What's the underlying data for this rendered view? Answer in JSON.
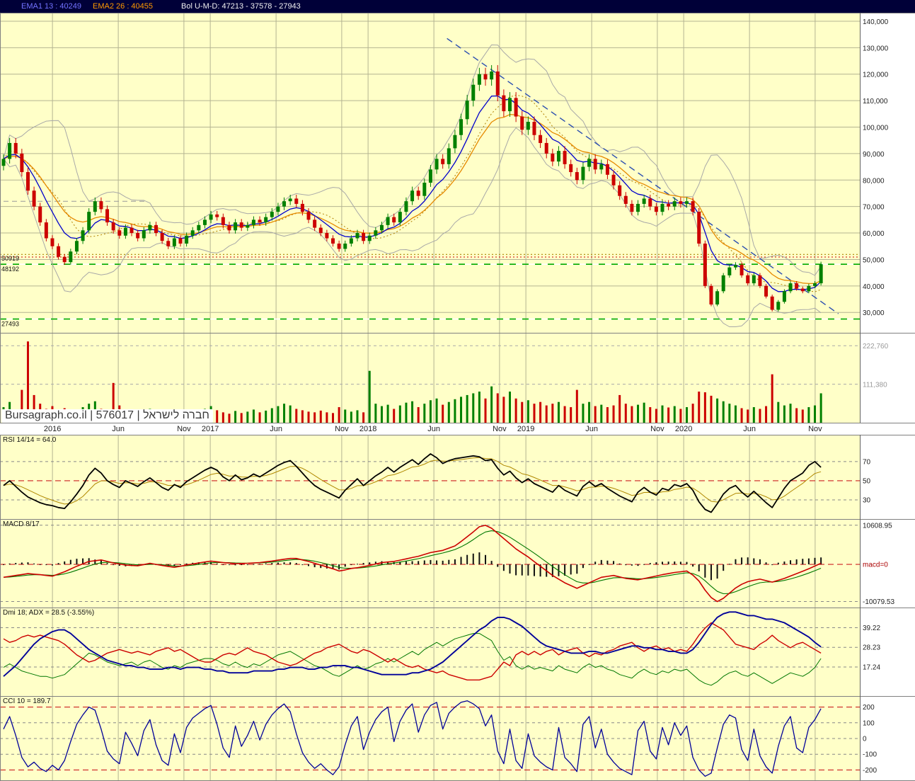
{
  "header": {
    "ema1": "EMA1 13 : 40249",
    "ema2": "EMA2 26 : 40455",
    "bol": "Bol U-M-D: 47213 - 37578 - 27943"
  },
  "watermark": "Bursagraph.co.il | 576017 | חברה לישראל",
  "colors": {
    "panel_background": "#ffffc8",
    "grid": "#b4b492",
    "up": "#008000",
    "down": "#cc0000",
    "ema_fast": "#0000cc",
    "ema_slow": "#e68a00",
    "bollinger": "#a8a8a8",
    "bollinger_mid": "#b08000",
    "trendline": "#2a4db0",
    "rsi_line": "#000000",
    "rsi_smooth": "#b08800",
    "macd_line": "#cc0000",
    "macd_signal": "#007700",
    "adx_line": "#000099",
    "cci_line": "#000099",
    "red_dashed": "#cc2222",
    "gray_dashed": "#888888"
  },
  "chart_data": {
    "type": "candlestick+indicators",
    "t_start": 2015.69,
    "t_end": 2020.87,
    "x_ticks": [
      {
        "t": 2016.0,
        "label": "2016"
      },
      {
        "t": 2016.417,
        "label": "Jun"
      },
      {
        "t": 2016.833,
        "label": "Nov"
      },
      {
        "t": 2017.0,
        "label": "2017"
      },
      {
        "t": 2017.417,
        "label": "Jun"
      },
      {
        "t": 2017.833,
        "label": "Nov"
      },
      {
        "t": 2018.0,
        "label": "2018"
      },
      {
        "t": 2018.417,
        "label": "Jun"
      },
      {
        "t": 2018.833,
        "label": "Nov"
      },
      {
        "t": 2019.0,
        "label": "2019"
      },
      {
        "t": 2019.417,
        "label": "Jun"
      },
      {
        "t": 2019.833,
        "label": "Nov"
      },
      {
        "t": 2020.0,
        "label": "2020"
      },
      {
        "t": 2020.417,
        "label": "Jun"
      },
      {
        "t": 2020.833,
        "label": "Nov"
      }
    ],
    "close": [
      88000,
      94000,
      90000,
      83000,
      76000,
      70000,
      64000,
      58000,
      55000,
      51000,
      49000,
      53000,
      57000,
      61000,
      68000,
      72000,
      69000,
      64000,
      61000,
      59000,
      62000,
      60000,
      58000,
      61000,
      63000,
      60000,
      57000,
      55000,
      58000,
      56000,
      59000,
      61000,
      63000,
      65000,
      67000,
      66000,
      63000,
      61000,
      64000,
      62000,
      63000,
      65000,
      64000,
      66000,
      68000,
      70000,
      72000,
      73000,
      71000,
      68000,
      65000,
      62000,
      60000,
      58000,
      56000,
      54000,
      56000,
      58000,
      60000,
      57000,
      59000,
      61000,
      63000,
      66000,
      64000,
      68000,
      72000,
      76000,
      74000,
      79000,
      84000,
      88000,
      86000,
      92000,
      97000,
      103000,
      110000,
      116000,
      120000,
      118000,
      121000,
      112000,
      106000,
      111000,
      104000,
      99000,
      102000,
      97000,
      94000,
      90000,
      87000,
      91000,
      86000,
      83000,
      80000,
      85000,
      88000,
      84000,
      86000,
      82000,
      78000,
      74000,
      71000,
      68000,
      71000,
      73000,
      70000,
      68000,
      71000,
      70000,
      72000,
      71000,
      72000,
      68000,
      56000,
      40000,
      33000,
      38000,
      44000,
      47000,
      48000,
      44000,
      41000,
      44000,
      40000,
      36000,
      31000,
      34000,
      38000,
      41000,
      39000,
      38000,
      40000,
      41000,
      48200
    ],
    "volume": [
      45000,
      60000,
      38000,
      95000,
      235000,
      80000,
      55000,
      40000,
      48000,
      35000,
      42000,
      30000,
      38000,
      45000,
      55000,
      62000,
      40000,
      35000,
      115000,
      50000,
      38000,
      30000,
      28000,
      35000,
      40000,
      30000,
      26000,
      38000,
      30000,
      25000,
      32000,
      28000,
      35000,
      40000,
      48000,
      36000,
      30000,
      26000,
      34000,
      28000,
      32000,
      38000,
      30000,
      35000,
      42000,
      48000,
      55000,
      50000,
      40000,
      36000,
      32000,
      30000,
      35000,
      30000,
      28000,
      45000,
      38000,
      32000,
      36000,
      30000,
      150000,
      55000,
      48000,
      52000,
      40000,
      50000,
      58000,
      62000,
      45000,
      55000,
      65000,
      70000,
      52000,
      60000,
      68000,
      75000,
      80000,
      85000,
      90000,
      70000,
      105000,
      85000,
      75000,
      90000,
      70000,
      60000,
      65000,
      55000,
      60000,
      50000,
      55000,
      60000,
      48000,
      45000,
      95000,
      55000,
      60000,
      48000,
      52000,
      45000,
      50000,
      80000,
      55000,
      48000,
      52000,
      58000,
      45000,
      40000,
      50000,
      44000,
      48000,
      40000,
      45000,
      55000,
      90000,
      88000,
      78000,
      70000,
      62000,
      55000,
      50000,
      42000,
      38000,
      45000,
      40000,
      48000,
      140000,
      60000,
      50000,
      55000,
      42000,
      38000,
      45000,
      50000,
      85000
    ],
    "rsi": [
      45,
      50,
      44,
      38,
      33,
      30,
      27,
      25,
      24,
      22,
      21,
      28,
      36,
      45,
      56,
      63,
      58,
      50,
      46,
      43,
      50,
      47,
      44,
      49,
      53,
      48,
      43,
      40,
      46,
      43,
      49,
      53,
      57,
      61,
      64,
      61,
      54,
      50,
      56,
      51,
      53,
      57,
      54,
      58,
      62,
      66,
      69,
      71,
      65,
      58,
      51,
      45,
      41,
      38,
      35,
      32,
      40,
      46,
      52,
      45,
      50,
      55,
      59,
      64,
      59,
      64,
      68,
      72,
      67,
      73,
      78,
      74,
      68,
      71,
      73,
      74,
      75,
      76,
      75,
      71,
      72,
      63,
      56,
      60,
      53,
      48,
      52,
      47,
      44,
      41,
      38,
      45,
      40,
      37,
      34,
      44,
      49,
      44,
      47,
      42,
      38,
      34,
      31,
      28,
      38,
      43,
      38,
      35,
      42,
      40,
      46,
      44,
      47,
      40,
      28,
      20,
      17,
      26,
      36,
      42,
      45,
      38,
      33,
      39,
      33,
      27,
      22,
      32,
      42,
      50,
      54,
      58,
      66,
      70,
      64
    ],
    "macd": [
      -3500,
      -3250,
      -3000,
      -2750,
      -2500,
      -2650,
      -2800,
      -3000,
      -3200,
      -2600,
      -2000,
      -1250,
      -500,
      150,
      800,
      1000,
      1200,
      800,
      400,
      100,
      -200,
      -300,
      -400,
      -50,
      300,
      0,
      -300,
      -550,
      -800,
      -500,
      -200,
      100,
      400,
      650,
      900,
      700,
      500,
      350,
      200,
      250,
      300,
      400,
      500,
      700,
      900,
      1150,
      1400,
      1600,
      1600,
      1200,
      800,
      300,
      -200,
      -700,
      -1200,
      -1800,
      -1500,
      -1100,
      -900,
      -600,
      -300,
      100,
      500,
      650,
      800,
      1150,
      1500,
      1850,
      2200,
      2700,
      3200,
      3500,
      3800,
      4400,
      5000,
      6200,
      7500,
      8800,
      10200,
      10600,
      9800,
      8400,
      7000,
      5600,
      4200,
      3100,
      2000,
      750,
      -500,
      -1750,
      -3000,
      -4000,
      -5000,
      -5750,
      -6500,
      -5750,
      -5000,
      -4250,
      -3500,
      -3250,
      -3000,
      -3400,
      -3800,
      -4000,
      -4200,
      -3850,
      -3500,
      -3150,
      -2800,
      -2500,
      -2200,
      -2000,
      -1800,
      -2900,
      -4500,
      -7000,
      -9000,
      -10079,
      -9200,
      -7800,
      -6400,
      -5400,
      -4700,
      -4300,
      -4000,
      -4400,
      -4800,
      -4300,
      -3800,
      -3150,
      -2500,
      -1850,
      -1200,
      -450,
      300
    ],
    "adx": [
      12,
      15,
      18,
      22,
      26,
      30,
      33,
      35,
      37,
      38,
      38,
      36,
      33,
      30,
      27,
      25,
      23,
      21,
      20,
      19,
      18,
      18,
      17,
      17,
      16,
      16,
      16,
      17,
      17,
      16,
      17,
      17,
      17,
      16,
      16,
      15,
      15,
      14,
      14,
      14,
      14,
      15,
      15,
      15,
      15,
      16,
      16,
      17,
      17,
      17,
      16,
      16,
      17,
      17,
      18,
      18,
      18,
      17,
      17,
      16,
      15,
      14,
      13,
      13,
      13,
      13,
      13,
      14,
      14,
      15,
      16,
      18,
      20,
      23,
      26,
      29,
      32,
      35,
      38,
      40,
      43,
      45,
      45,
      44,
      42,
      40,
      37,
      34,
      31,
      29,
      28,
      27,
      26,
      25,
      25,
      25,
      26,
      26,
      25,
      25,
      26,
      27,
      28,
      29,
      29,
      28,
      28,
      27,
      27,
      26,
      26,
      25,
      25,
      27,
      31,
      36,
      41,
      45,
      47,
      48,
      48,
      47,
      46,
      46,
      45,
      44,
      44,
      43,
      42,
      40,
      38,
      36,
      34,
      31,
      28.5
    ],
    "di_minus": [
      33,
      31,
      32,
      34,
      35,
      34,
      35,
      34,
      33,
      32,
      30,
      27,
      24,
      22,
      20,
      21,
      23,
      25,
      26,
      27,
      26,
      25,
      26,
      25,
      24,
      26,
      27,
      28,
      26,
      27,
      25,
      23,
      21,
      20,
      20,
      22,
      24,
      25,
      24,
      26,
      28,
      26,
      25,
      24,
      22,
      20,
      19,
      18,
      19,
      21,
      23,
      25,
      26,
      28,
      29,
      30,
      28,
      26,
      25,
      27,
      26,
      24,
      22,
      20,
      22,
      20,
      18,
      17,
      18,
      16,
      15,
      14,
      15,
      13,
      12,
      11,
      10,
      10,
      10,
      11,
      12,
      16,
      20,
      18,
      24,
      26,
      24,
      26,
      24,
      26,
      27,
      24,
      26,
      27,
      28,
      25,
      23,
      25,
      24,
      26,
      27,
      29,
      30,
      31,
      28,
      26,
      28,
      29,
      27,
      28,
      26,
      27,
      26,
      30,
      35,
      39,
      42,
      40,
      38,
      34,
      30,
      29,
      28,
      27,
      30,
      32,
      35,
      32,
      30,
      28,
      30,
      31,
      29,
      27,
      25
    ],
    "di_plus": [
      17,
      19,
      17,
      15,
      14,
      13,
      12,
      12,
      11,
      12,
      13,
      16,
      19,
      22,
      25,
      24,
      22,
      20,
      19,
      18,
      19,
      20,
      18,
      20,
      21,
      19,
      17,
      16,
      18,
      17,
      19,
      20,
      21,
      22,
      22,
      21,
      19,
      18,
      20,
      18,
      17,
      19,
      18,
      20,
      22,
      24,
      25,
      26,
      24,
      22,
      20,
      18,
      17,
      15,
      13,
      12,
      14,
      16,
      18,
      16,
      17,
      19,
      20,
      22,
      20,
      22,
      24,
      26,
      24,
      27,
      29,
      31,
      29,
      31,
      33,
      34,
      35,
      36,
      36,
      34,
      32,
      26,
      21,
      23,
      18,
      16,
      18,
      16,
      17,
      16,
      15,
      18,
      16,
      15,
      14,
      17,
      19,
      17,
      18,
      16,
      15,
      13,
      12,
      11,
      14,
      16,
      14,
      13,
      15,
      14,
      16,
      15,
      16,
      13,
      10,
      8,
      7,
      9,
      12,
      14,
      15,
      13,
      12,
      14,
      12,
      10,
      8,
      10,
      12,
      14,
      13,
      12,
      14,
      17,
      22
    ],
    "cci": [
      60,
      140,
      20,
      -120,
      -180,
      -150,
      -190,
      -210,
      -170,
      -200,
      -140,
      -20,
      90,
      150,
      200,
      180,
      60,
      -80,
      -130,
      -160,
      40,
      -30,
      -110,
      50,
      120,
      -40,
      -140,
      -170,
      30,
      -90,
      70,
      130,
      160,
      190,
      210,
      90,
      -60,
      -120,
      80,
      -50,
      20,
      110,
      -10,
      90,
      150,
      190,
      220,
      170,
      30,
      -90,
      -150,
      -190,
      -160,
      -200,
      -230,
      -180,
      -40,
      80,
      140,
      -70,
      40,
      120,
      170,
      200,
      -20,
      110,
      180,
      220,
      40,
      150,
      210,
      230,
      60,
      160,
      200,
      230,
      240,
      220,
      190,
      80,
      150,
      -80,
      -160,
      60,
      -140,
      -190,
      30,
      -110,
      -150,
      -180,
      -200,
      70,
      -120,
      -160,
      -210,
      90,
      140,
      -60,
      60,
      -100,
      -150,
      -190,
      -210,
      -230,
      50,
      110,
      -80,
      -130,
      70,
      -40,
      100,
      20,
      80,
      -120,
      -200,
      -240,
      -220,
      -60,
      90,
      150,
      130,
      -70,
      -140,
      60,
      -110,
      -180,
      -220,
      -50,
      80,
      140,
      -60,
      -90,
      70,
      120,
      189.7
    ],
    "price_panel": {
      "ylim": [
        22300,
        143200
      ],
      "axis": [
        {
          "v": 140000,
          "label": "140,000"
        },
        {
          "v": 130000,
          "label": "130,000"
        },
        {
          "v": 120000,
          "label": "120,000"
        },
        {
          "v": 110000,
          "label": "110,000"
        },
        {
          "v": 100000,
          "label": "100,000"
        },
        {
          "v": 90000,
          "label": "90,000"
        },
        {
          "v": 80000,
          "label": "80,000"
        },
        {
          "v": 70000,
          "label": "70,000"
        },
        {
          "v": 60000,
          "label": "60,000"
        },
        {
          "v": 50000,
          "label": "50,000"
        },
        {
          "v": 40000,
          "label": "40,000"
        },
        {
          "v": 30000,
          "label": "30,000"
        }
      ],
      "reference_lines": [
        {
          "value": 51900,
          "label": "",
          "color": "#aa8800",
          "style": "dotted"
        },
        {
          "value": 50919,
          "label": "50919",
          "color": "#cc0000",
          "style": "dotted"
        },
        {
          "value": 48192,
          "label": "48192",
          "color": "#00aa00",
          "style": "green-white"
        },
        {
          "value": 27493,
          "label": "27493",
          "color": "#00aa00",
          "style": "green-white"
        }
      ],
      "gray_segment": {
        "t1": 2015.69,
        "t2": 2016.6,
        "v": 72000
      },
      "trendline": {
        "t1": 2018.5,
        "p1": 133500,
        "t2": 2020.98,
        "p2": 29500
      }
    },
    "volume_panel": {
      "ylim": [
        0,
        260000
      ],
      "axis": [
        {
          "v": 222760,
          "label": "222,760"
        },
        {
          "v": 111380,
          "label": "111,380"
        }
      ]
    },
    "rsi_panel": {
      "title": "RSI 14/14 = 64.0",
      "ylim": [
        10,
        98
      ],
      "lines": [
        {
          "v": 70,
          "label": "70",
          "style": "gray"
        },
        {
          "v": 50,
          "label": "50",
          "style": "red"
        },
        {
          "v": 30,
          "label": "30",
          "style": "gray"
        }
      ]
    },
    "macd_panel": {
      "title": "MACD 8/17",
      "ylim": [
        -11700,
        12300
      ],
      "lines": [
        {
          "v": 10608.95,
          "label": "10608.95",
          "style": "gray"
        },
        {
          "v": 0,
          "label": "macd=0",
          "style": "red"
        },
        {
          "v": -10079.53,
          "label": "-10079.53",
          "style": "gray"
        }
      ]
    },
    "dmi_panel": {
      "title": "Dmi 18; ADX = 28.5 (-3.55%)",
      "ylim": [
        1,
        50.5
      ],
      "lines": [
        {
          "v": 39.22,
          "label": "39.22",
          "style": "gray"
        },
        {
          "v": 28.23,
          "label": "28.23",
          "style": "gray"
        },
        {
          "v": 17.24,
          "label": "17.24",
          "style": "gray"
        }
      ]
    },
    "cci_panel": {
      "title": "CCI 10 = 189.7",
      "ylim": [
        -270,
        270
      ],
      "lines": [
        {
          "v": 200,
          "label": "200",
          "style": "red"
        },
        {
          "v": 100,
          "label": "100",
          "style": "gray"
        },
        {
          "v": 0,
          "label": "0",
          "style": "gray"
        },
        {
          "v": -100,
          "label": "-100",
          "style": "gray"
        },
        {
          "v": -200,
          "label": "-200",
          "style": "red"
        }
      ]
    }
  }
}
